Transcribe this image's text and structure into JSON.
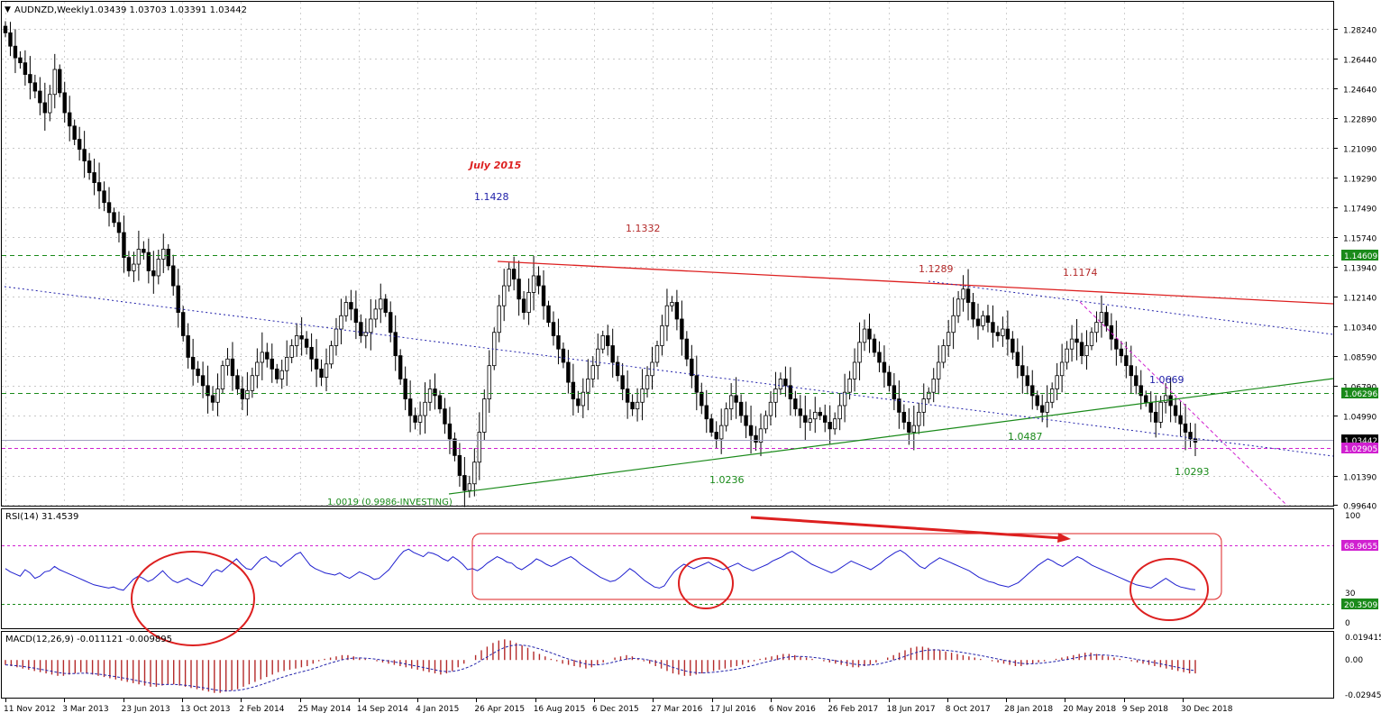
{
  "window": {
    "title": "AUDNZD,Weekly",
    "ohlc": "1.03439 1.03703 1.03391 1.03442"
  },
  "colors": {
    "background": "#ffffff",
    "grid": "#c0c0c0",
    "candle": "#000000",
    "resistance_red": "#dd2020",
    "support_green": "#1a8a1a",
    "dotted_blue": "#2222aa",
    "magenta": "#d020d0",
    "rsi_line": "#1f1fcf",
    "macd_hist": "#b42a2a",
    "macd_signal": "#2222aa"
  },
  "price_axis": {
    "ticks": [
      "1.28240",
      "1.26440",
      "1.24640",
      "1.22890",
      "1.21090",
      "1.19290",
      "1.17490",
      "1.15740",
      "1.13940",
      "1.12140",
      "1.10340",
      "1.08590",
      "1.06790",
      "1.04990",
      "1.01390",
      "0.99640"
    ],
    "badges": {
      "green_top": "1.14609",
      "green_mid": "1.06296",
      "current": "1.03442",
      "magenta": "1.02905"
    }
  },
  "time_axis": {
    "labels": [
      "11 Nov 2012",
      "3 Mar 2013",
      "23 Jun 2013",
      "13 Oct 2013",
      "2 Feb 2014",
      "25 May 2014",
      "14 Sep 2014",
      "4 Jan 2015",
      "26 Apr 2015",
      "16 Aug 2015",
      "6 Dec 2015",
      "27 Mar 2016",
      "17 Jul 2016",
      "6 Nov 2016",
      "26 Feb 2017",
      "18 Jun 2017",
      "8 Oct 2017",
      "28 Jan 2018",
      "20 May 2018",
      "9 Sep 2018",
      "30 Dec 2018"
    ]
  },
  "annotations": {
    "july_2015": "July 2015",
    "a_1_1428": "1.1428",
    "a_1_1332": "1.1332",
    "a_1_1289": "1.1289",
    "a_1_1174": "1.1174",
    "a_1_0669": "1.0669",
    "a_1_0487": "1.0487",
    "a_1_0236": "1.0236",
    "a_1_0293": "1.0293",
    "a_1_0019": "1.0019 (0.9986-INVESTING)"
  },
  "rsi": {
    "label": "RSI(14) 31.4539",
    "axis_100": "100",
    "axis_30": "30",
    "axis_0": "0",
    "badge_upper": "68.9655",
    "badge_lower": "20.3509"
  },
  "macd": {
    "label": "MACD(12,26,9) -0.011121 -0.009895",
    "axis_top": "0.019415",
    "axis_zero": "0.00",
    "axis_bottom": "-0.029455"
  },
  "chart_data": [
    {
      "type": "candlestick",
      "symbol": "AUDNZD",
      "timeframe": "Weekly",
      "x_start": "11 Nov 2012",
      "x_end": "Jan 2019",
      "ylim": [
        0.9964,
        1.2824
      ],
      "closes": [
        1.28,
        1.272,
        1.265,
        1.262,
        1.255,
        1.25,
        1.245,
        1.238,
        1.232,
        1.243,
        1.258,
        1.244,
        1.232,
        1.224,
        1.216,
        1.21,
        1.203,
        1.196,
        1.19,
        1.185,
        1.178,
        1.172,
        1.166,
        1.16,
        1.145,
        1.137,
        1.141,
        1.15,
        1.148,
        1.137,
        1.134,
        1.144,
        1.15,
        1.14,
        1.128,
        1.112,
        1.098,
        1.085,
        1.078,
        1.074,
        1.068,
        1.062,
        1.058,
        1.066,
        1.08,
        1.084,
        1.074,
        1.066,
        1.06,
        1.065,
        1.074,
        1.082,
        1.088,
        1.084,
        1.078,
        1.072,
        1.077,
        1.085,
        1.092,
        1.098,
        1.096,
        1.091,
        1.084,
        1.078,
        1.073,
        1.081,
        1.092,
        1.102,
        1.11,
        1.118,
        1.114,
        1.106,
        1.098,
        1.1,
        1.108,
        1.114,
        1.12,
        1.112,
        1.1,
        1.086,
        1.072,
        1.06,
        1.05,
        1.046,
        1.05,
        1.058,
        1.066,
        1.062,
        1.054,
        1.045,
        1.036,
        1.026,
        1.014,
        1.005,
        1.009,
        1.022,
        1.04,
        1.06,
        1.08,
        1.1,
        1.116,
        1.128,
        1.138,
        1.132,
        1.12,
        1.112,
        1.124,
        1.134,
        1.128,
        1.116,
        1.106,
        1.098,
        1.09,
        1.082,
        1.07,
        1.06,
        1.056,
        1.064,
        1.072,
        1.08,
        1.09,
        1.098,
        1.092,
        1.082,
        1.074,
        1.066,
        1.058,
        1.054,
        1.058,
        1.066,
        1.074,
        1.082,
        1.092,
        1.104,
        1.116,
        1.118,
        1.108,
        1.096,
        1.084,
        1.074,
        1.064,
        1.056,
        1.048,
        1.04,
        1.036,
        1.044,
        1.054,
        1.062,
        1.058,
        1.05,
        1.044,
        1.038,
        1.034,
        1.042,
        1.05,
        1.058,
        1.066,
        1.072,
        1.068,
        1.06,
        1.054,
        1.05,
        1.046,
        1.048,
        1.052,
        1.05,
        1.046,
        1.042,
        1.048,
        1.056,
        1.064,
        1.072,
        1.082,
        1.094,
        1.102,
        1.096,
        1.088,
        1.082,
        1.076,
        1.068,
        1.06,
        1.052,
        1.046,
        1.04,
        1.044,
        1.052,
        1.06,
        1.064,
        1.072,
        1.082,
        1.092,
        1.1,
        1.11,
        1.12,
        1.126,
        1.118,
        1.108,
        1.104,
        1.11,
        1.106,
        1.1,
        1.098,
        1.102,
        1.096,
        1.088,
        1.08,
        1.074,
        1.068,
        1.062,
        1.056,
        1.052,
        1.058,
        1.066,
        1.074,
        1.082,
        1.09,
        1.096,
        1.094,
        1.086,
        1.092,
        1.1,
        1.106,
        1.112,
        1.104,
        1.096,
        1.09,
        1.086,
        1.08,
        1.074,
        1.068,
        1.062,
        1.058,
        1.052,
        1.046,
        1.058,
        1.062,
        1.056,
        1.05,
        1.045,
        1.04,
        1.036,
        1.034
      ]
    },
    {
      "type": "line",
      "name": "RSI(14)",
      "ylim": [
        0,
        100
      ],
      "levels": [
        68.9655,
        20.3509
      ],
      "values": [
        51,
        48,
        46,
        44,
        50,
        47,
        42,
        44,
        48,
        49,
        53,
        50,
        48,
        46,
        44,
        42,
        40,
        38,
        36,
        35,
        34,
        33,
        34,
        32,
        31,
        36,
        41,
        44,
        42,
        39,
        41,
        45,
        49,
        44,
        40,
        38,
        40,
        42,
        39,
        37,
        35,
        40,
        47,
        50,
        48,
        52,
        56,
        60,
        55,
        51,
        50,
        55,
        60,
        62,
        58,
        57,
        53,
        57,
        60,
        64,
        66,
        60,
        54,
        51,
        49,
        47,
        46,
        45,
        47,
        44,
        42,
        45,
        48,
        46,
        44,
        41,
        42,
        46,
        50,
        56,
        62,
        67,
        69,
        66,
        64,
        62,
        66,
        65,
        63,
        60,
        58,
        62,
        59,
        55,
        50,
        51,
        49,
        52,
        56,
        59,
        62,
        60,
        57,
        56,
        52,
        50,
        53,
        56,
        60,
        58,
        55,
        53,
        55,
        58,
        60,
        62,
        59,
        55,
        52,
        49,
        46,
        43,
        41,
        39,
        40,
        43,
        47,
        51,
        48,
        44,
        40,
        37,
        34,
        33,
        35,
        42,
        48,
        52,
        55,
        53,
        51,
        53,
        55,
        57,
        54,
        52,
        50,
        52,
        54,
        56,
        53,
        51,
        49,
        51,
        53,
        55,
        58,
        60,
        62,
        65,
        67,
        64,
        61,
        58,
        55,
        53,
        51,
        49,
        47,
        49,
        52,
        55,
        58,
        56,
        54,
        52,
        50,
        53,
        56,
        60,
        63,
        66,
        68,
        65,
        61,
        57,
        53,
        51,
        55,
        58,
        61,
        59,
        57,
        55,
        53,
        51,
        49,
        46,
        43,
        41,
        39,
        38,
        36,
        35,
        34,
        36,
        38,
        42,
        46,
        50,
        54,
        57,
        60,
        58,
        55,
        53,
        56,
        59,
        62,
        60,
        57,
        54,
        52,
        50,
        48,
        46,
        44,
        42,
        40,
        38,
        36,
        35,
        34,
        33,
        36,
        39,
        42,
        39,
        36,
        34,
        33,
        32,
        31.5
      ]
    },
    {
      "type": "bar",
      "name": "MACD(12,26,9)",
      "ylim": [
        -0.029455,
        0.019415
      ],
      "macd_last": -0.011121,
      "signal_last": -0.009895,
      "values": [
        -0.004,
        -0.005,
        -0.006,
        -0.007,
        -0.008,
        -0.009,
        -0.01,
        -0.011,
        -0.012,
        -0.013,
        -0.013,
        -0.012,
        -0.011,
        -0.01,
        -0.011,
        -0.012,
        -0.013,
        -0.014,
        -0.015,
        -0.016,
        -0.017,
        -0.018,
        -0.019,
        -0.02,
        -0.021,
        -0.022,
        -0.022,
        -0.021,
        -0.02,
        -0.02,
        -0.021,
        -0.022,
        -0.023,
        -0.024,
        -0.025,
        -0.026,
        -0.027,
        -0.027,
        -0.026,
        -0.025,
        -0.024,
        -0.022,
        -0.02,
        -0.018,
        -0.016,
        -0.014,
        -0.012,
        -0.01,
        -0.009,
        -0.008,
        -0.007,
        -0.006,
        -0.005,
        -0.003,
        -0.001,
        0.001,
        0.002,
        0.003,
        0.004,
        0.004,
        0.003,
        0.002,
        0.001,
        0.0,
        -0.001,
        -0.002,
        -0.003,
        -0.004,
        -0.005,
        -0.006,
        -0.007,
        -0.008,
        -0.009,
        -0.01,
        -0.011,
        -0.012,
        -0.011,
        -0.009,
        -0.006,
        -0.003,
        0.0,
        0.004,
        0.008,
        0.011,
        0.014,
        0.016,
        0.017,
        0.016,
        0.014,
        0.012,
        0.01,
        0.007,
        0.005,
        0.003,
        0.001,
        -0.001,
        -0.003,
        -0.004,
        -0.005,
        -0.006,
        -0.007,
        -0.006,
        -0.004,
        -0.002,
        0.0,
        0.002,
        0.003,
        0.004,
        0.003,
        0.001,
        -0.001,
        -0.003,
        -0.005,
        -0.007,
        -0.009,
        -0.011,
        -0.012,
        -0.013,
        -0.013,
        -0.012,
        -0.011,
        -0.01,
        -0.009,
        -0.008,
        -0.007,
        -0.006,
        -0.005,
        -0.004,
        -0.002,
        -0.001,
        0.001,
        0.002,
        0.003,
        0.004,
        0.005,
        0.005,
        0.004,
        0.003,
        0.002,
        0.001,
        0.0,
        -0.001,
        -0.002,
        -0.003,
        -0.004,
        -0.005,
        -0.006,
        -0.006,
        -0.005,
        -0.004,
        -0.002,
        0.0,
        0.002,
        0.004,
        0.006,
        0.008,
        0.01,
        0.011,
        0.011,
        0.01,
        0.009,
        0.008,
        0.007,
        0.006,
        0.005,
        0.004,
        0.003,
        0.002,
        0.001,
        0.0,
        -0.001,
        -0.002,
        -0.003,
        -0.004,
        -0.005,
        -0.005,
        -0.004,
        -0.003,
        -0.002,
        -0.001,
        0.0,
        0.001,
        0.002,
        0.003,
        0.004,
        0.005,
        0.006,
        0.006,
        0.005,
        0.004,
        0.003,
        0.002,
        0.001,
        0.0,
        -0.001,
        -0.002,
        -0.003,
        -0.004,
        -0.005,
        -0.006,
        -0.007,
        -0.008,
        -0.009,
        -0.01,
        -0.011,
        -0.011
      ]
    }
  ]
}
